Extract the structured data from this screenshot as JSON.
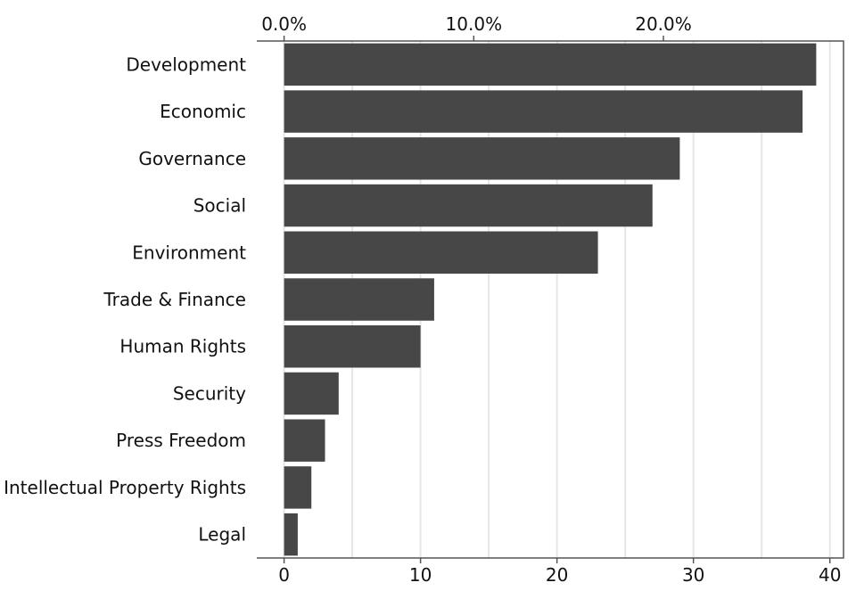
{
  "chart_data": {
    "type": "bar",
    "orientation": "horizontal",
    "title": "",
    "xlabel": "",
    "ylabel": "",
    "categories": [
      "Development",
      "Economic",
      "Governance",
      "Social",
      "Environment",
      "Trade & Finance",
      "Human Rights",
      "Security",
      "Press Freedom",
      "Intellectual Property Rights",
      "Legal"
    ],
    "values": [
      39,
      38,
      29,
      27,
      23,
      11,
      10,
      4,
      3,
      2,
      1
    ],
    "xlim": [
      -2,
      41
    ],
    "bottom_axis": {
      "ticks": [
        0,
        10,
        20,
        30,
        40
      ],
      "labels": [
        "0",
        "10",
        "20",
        "30",
        "40"
      ]
    },
    "top_axis": {
      "ticks": [
        0,
        13.9,
        27.8
      ],
      "labels": [
        "0.0%",
        "10.0%",
        "20.0%"
      ]
    },
    "gridlines_every": 5,
    "grid": true,
    "bar_color": "#474747",
    "grid_color": "#e6e6e6"
  }
}
